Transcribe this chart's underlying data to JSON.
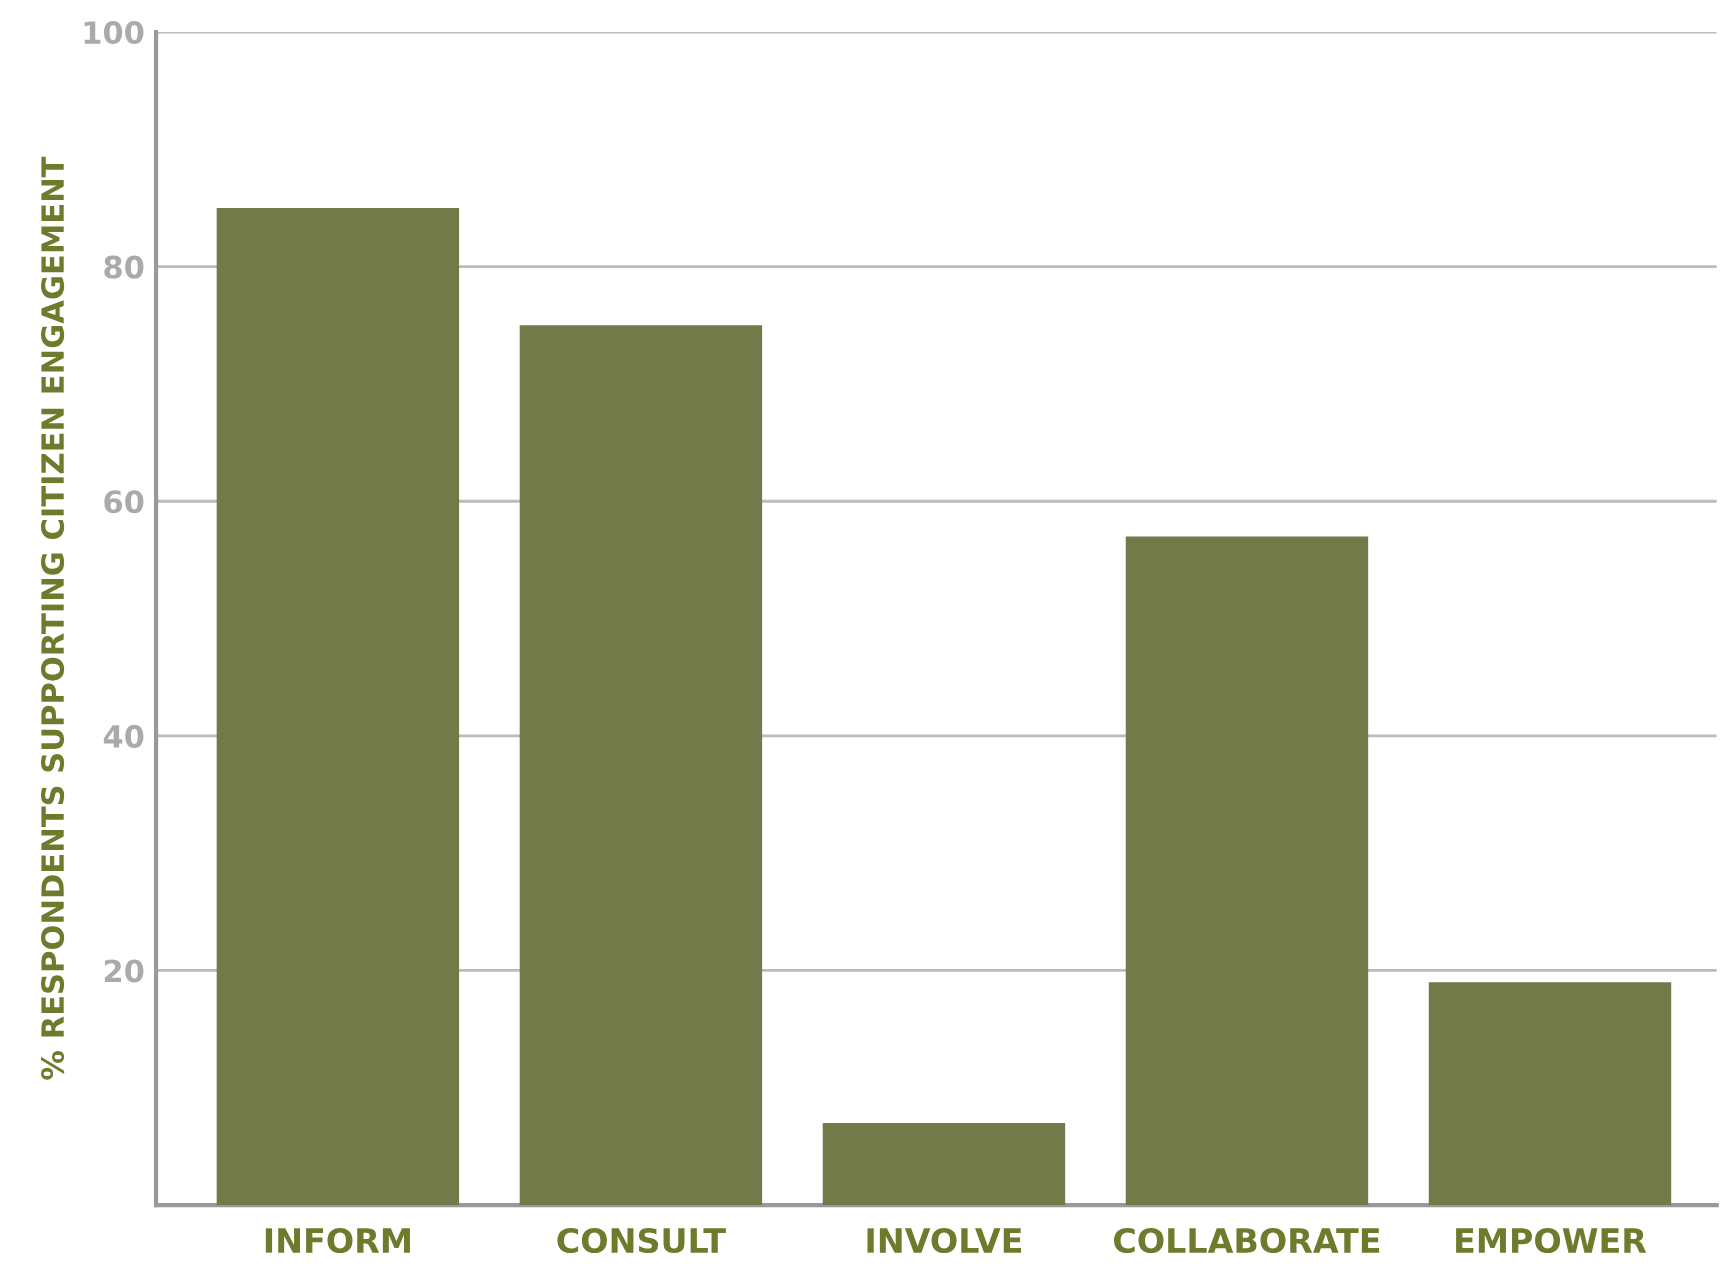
{
  "chart_data": {
    "type": "bar",
    "ylabel": "% RESPONDENTS SUPPORTING CITIZEN ENGAGEMENT",
    "categories": [
      "INFORM",
      "CONSULT",
      "INVOLVE",
      "COLLABORATE",
      "EMPOWER"
    ],
    "values": [
      85,
      75,
      7,
      57,
      19
    ],
    "color": "#737a4a",
    "ylim": [
      0,
      100
    ],
    "yticks": [
      20,
      40,
      60,
      80,
      100
    ],
    "grid": "y"
  }
}
